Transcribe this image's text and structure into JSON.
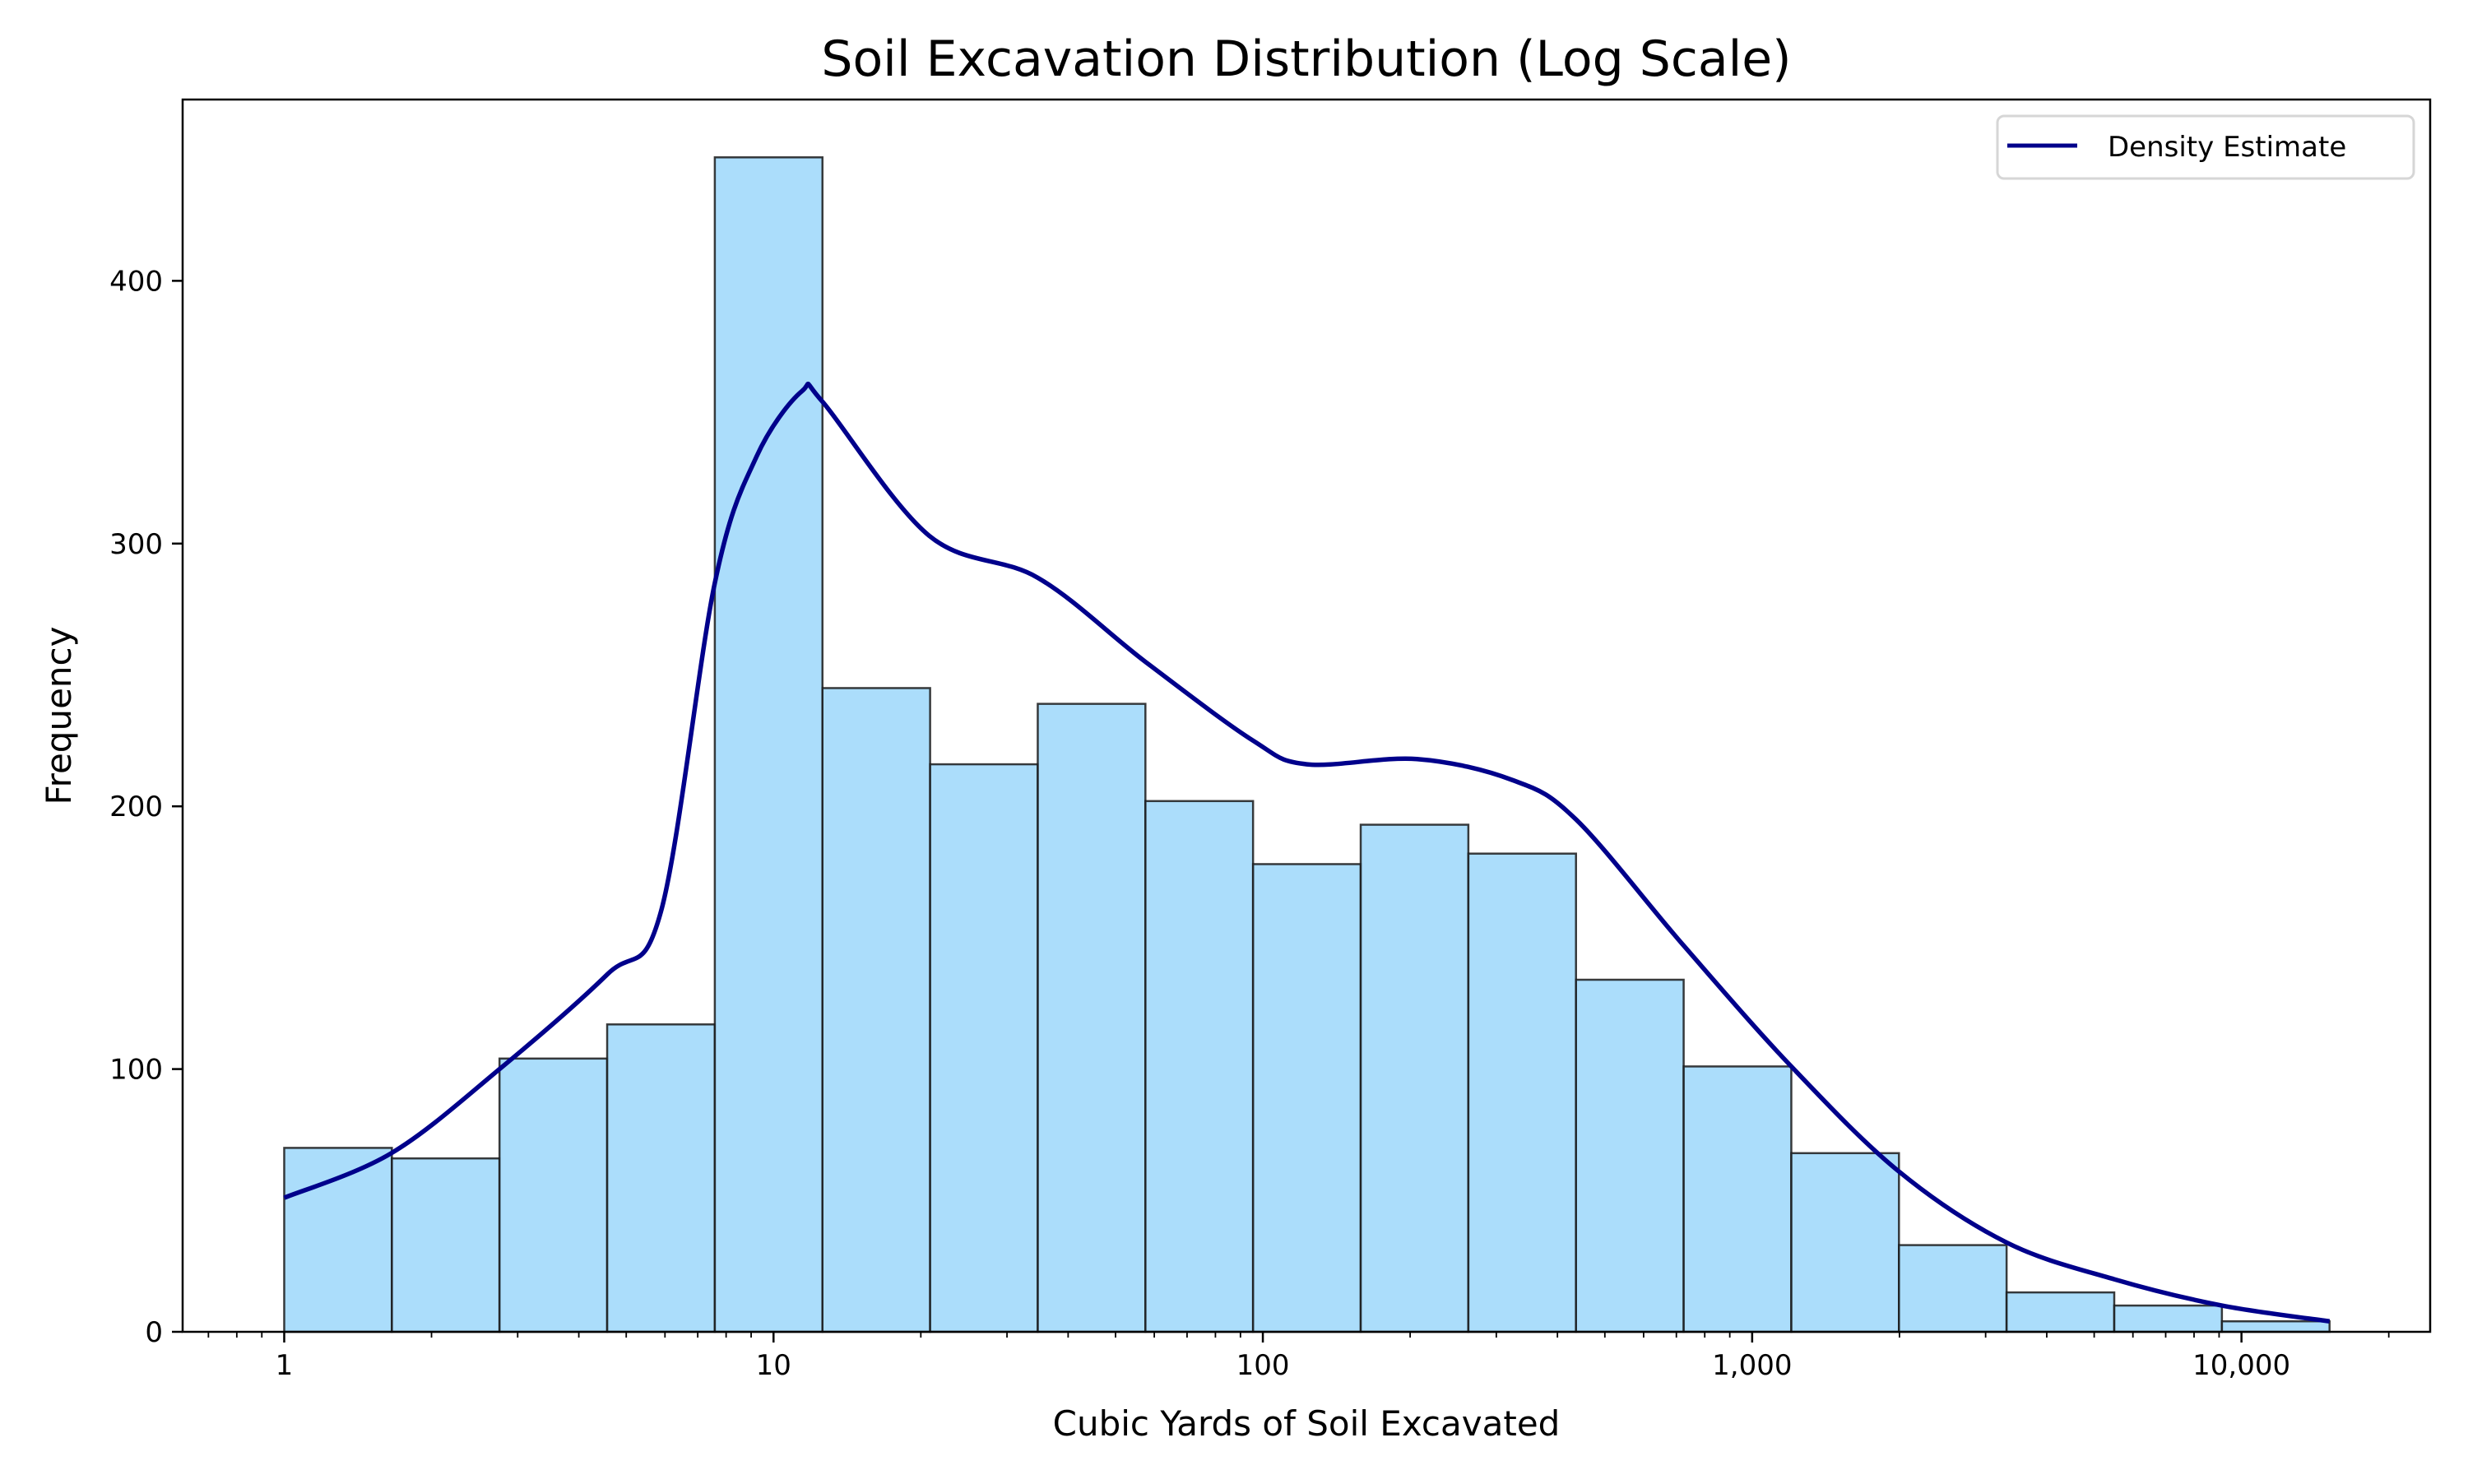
{
  "chart_data": {
    "type": "bar",
    "title": "Soil Excavation Distribution (Log Scale)",
    "xlabel": "Cubic Yards of Soil Excavated",
    "ylabel": "Frequency",
    "xscale": "log",
    "xlim": [
      0.62,
      24300
    ],
    "ylim": [
      0,
      469
    ],
    "grid": false,
    "legend": {
      "placement": "top-right",
      "entries": [
        "Density Estimate"
      ]
    },
    "x_ticks": [
      {
        "value": 1,
        "label": "1"
      },
      {
        "value": 10,
        "label": "10"
      },
      {
        "value": 100,
        "label": "100"
      },
      {
        "value": 1000,
        "label": "1,000"
      },
      {
        "value": 10000,
        "label": "10,000"
      }
    ],
    "y_ticks": [
      {
        "value": 0,
        "label": "0"
      },
      {
        "value": 100,
        "label": "100"
      },
      {
        "value": 200,
        "label": "200"
      },
      {
        "value": 300,
        "label": "300"
      },
      {
        "value": 400,
        "label": "400"
      }
    ],
    "histogram": {
      "name": "Histogram",
      "bin_log10_start": 0,
      "bin_log10_width": 0.22,
      "values": [
        70,
        66,
        104,
        117,
        447,
        245,
        216,
        239,
        202,
        178,
        193,
        182,
        134,
        101,
        68,
        33,
        15,
        10,
        4
      ],
      "fill": "#87CEFA",
      "edge": "#1a1a1a"
    },
    "series": [
      {
        "name": "Density Estimate",
        "color": "#00008B",
        "log10_x": [
          0,
          0.219,
          0.44,
          0.66,
          0.77,
          0.88,
          0.965,
          1.058,
          1.1,
          1.318,
          1.54,
          1.76,
          1.98,
          2.09,
          2.315,
          2.51,
          2.64,
          2.86,
          3.08,
          3.3,
          3.52,
          3.74,
          3.96,
          4.18
        ],
        "y": [
          51,
          68,
          100,
          136,
          160,
          285,
          333,
          358,
          354,
          303,
          287,
          255,
          225,
          216,
          218,
          210,
          195,
          147,
          101,
          61,
          34,
          20,
          10,
          4
        ]
      }
    ]
  }
}
